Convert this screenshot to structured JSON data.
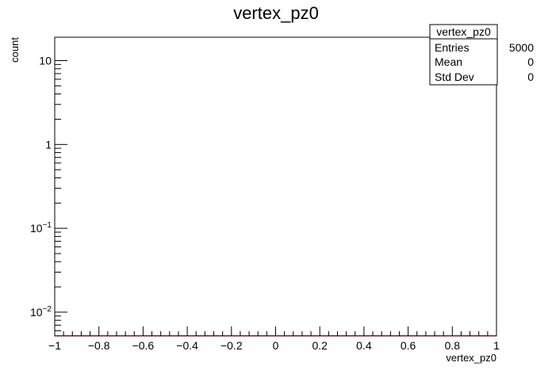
{
  "chart_data": {
    "type": "histogram",
    "title": "vertex_pz0",
    "xlabel": "vertex_pz0",
    "ylabel": "count",
    "xlim": [
      -1,
      1
    ],
    "ylim": [
      0.0052,
      19
    ],
    "yscale": "log",
    "x_ticks": [
      {
        "value": -1,
        "label": "−1"
      },
      {
        "value": -0.8,
        "label": "−0.8"
      },
      {
        "value": -0.6,
        "label": "−0.6"
      },
      {
        "value": -0.4,
        "label": "−0.4"
      },
      {
        "value": -0.2,
        "label": "−0.2"
      },
      {
        "value": 0,
        "label": "0"
      },
      {
        "value": 0.2,
        "label": "0.2"
      },
      {
        "value": 0.4,
        "label": "0.4"
      },
      {
        "value": 0.6,
        "label": "0.6"
      },
      {
        "value": 0.8,
        "label": "0.8"
      },
      {
        "value": 1,
        "label": "1"
      }
    ],
    "y_ticks": [
      {
        "value": 10,
        "base": "10",
        "exp": ""
      },
      {
        "value": 1,
        "base": "1",
        "exp": ""
      },
      {
        "value": 0.1,
        "base": "10",
        "exp": "−1"
      },
      {
        "value": 0.01,
        "base": "10",
        "exp": "−2"
      }
    ],
    "series": [
      {
        "color": "#ff0000",
        "values_visible": "none within y range"
      }
    ],
    "grid": false,
    "stats_box": {
      "title": "vertex_pz0",
      "rows": [
        {
          "label": "Entries",
          "value": "5000"
        },
        {
          "label": "Mean",
          "value": "0"
        },
        {
          "label": "Std Dev",
          "value": "0"
        }
      ]
    }
  }
}
